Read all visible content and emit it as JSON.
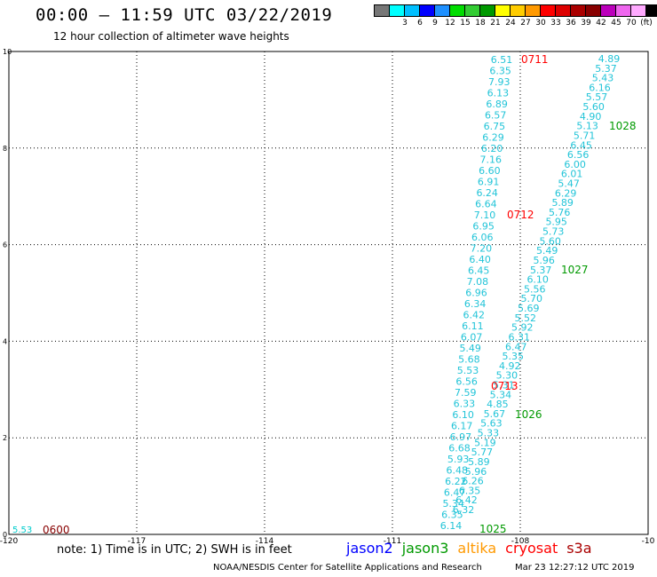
{
  "header": {
    "title": "00:00 – 11:59 UTC 03/22/2019",
    "subtitle": "12 hour collection of altimeter wave heights"
  },
  "colorbar": {
    "colors": [
      "#777777",
      "#00ffff",
      "#00bfff",
      "#0000ff",
      "#1e90ff",
      "#00dd00",
      "#33cc33",
      "#009900",
      "#ffff00",
      "#ffcc00",
      "#ff9900",
      "#ff0000",
      "#dd0000",
      "#aa0000",
      "#880000",
      "#bb00bb",
      "#ee66ee",
      "#ffaaff",
      "#000000"
    ],
    "labels": [
      "3",
      "6",
      "9",
      "12",
      "15",
      "18",
      "21",
      "24",
      "27",
      "30",
      "33",
      "36",
      "39",
      "42",
      "45",
      "70",
      "(ft)"
    ]
  },
  "axes": {
    "x_ticks": [
      "-120",
      "-117",
      "-114",
      "-111",
      "-108",
      "-10"
    ],
    "y_ticks": [
      "0",
      "2",
      "4",
      "6",
      "8",
      "10"
    ]
  },
  "tracks": [
    {
      "time": "0711",
      "color": "#ff0000",
      "values": [
        "6.51",
        "6.35",
        "7.93",
        "6.13",
        "6.89",
        "6.57",
        "6.75",
        "6.29",
        "6.20",
        "7.16",
        "6.60",
        "6.91",
        "6.24",
        "6.64",
        "7.10",
        "6.95",
        "6.06",
        "7.20",
        "6.40",
        "6.45",
        "7.08",
        "6.96",
        "6.34",
        "6.42",
        "6.11",
        "6.07",
        "5.49",
        "5.68",
        "5.53",
        "6.56",
        "7.59",
        "6.33",
        "6.10",
        "6.17",
        "6.97",
        "6.68",
        "5.93",
        "6.48",
        "6.22",
        "6.47",
        "5.34",
        "6.35",
        "6.14"
      ]
    },
    {
      "time": "1028",
      "color": "#009900",
      "values": [
        "4.89",
        "5.37",
        "5.43",
        "6.16",
        "5.57",
        "5.60",
        "4.90",
        "5.13",
        "5.71",
        "6.45",
        "6.56",
        "6.00",
        "6.01",
        "5.47",
        "6.29",
        "5.89",
        "5.76",
        "5.95",
        "5.73",
        "5.60",
        "5.49",
        "5.96",
        "5.37",
        "6.10",
        "5.56",
        "5.70",
        "5.69",
        "5.52",
        "5.92",
        "6.31",
        "6.47",
        "5.35",
        "4.92",
        "5.30",
        "5.31",
        "5.34",
        "4.85",
        "5.67",
        "5.63",
        "5.33",
        "5.19",
        "5.77",
        "5.89",
        "5.96",
        "6.26",
        "6.35",
        "6.42",
        "6.32"
      ]
    }
  ],
  "labels": {
    "t0711": "0711",
    "t0712": "0712",
    "t0713": "0713",
    "t1028": "1028",
    "t1027": "1027",
    "t1026": "1026",
    "t1025": "1025",
    "t0600": "0600",
    "v553": "5.53"
  },
  "note": "note: 1) Time is in UTC; 2) SWH is in feet",
  "satellites": [
    {
      "name": "jason2",
      "color": "#0000ff"
    },
    {
      "name": "jason3",
      "color": "#009900"
    },
    {
      "name": "altika",
      "color": "#ff9900"
    },
    {
      "name": "cryosat",
      "color": "#ff0000"
    },
    {
      "name": "s3a",
      "color": "#aa0000"
    }
  ],
  "footer": {
    "credit": "NOAA/NESDIS Center for Satellite Applications and Research",
    "date": "Mar 23 12:27:12 UTC 2019"
  }
}
